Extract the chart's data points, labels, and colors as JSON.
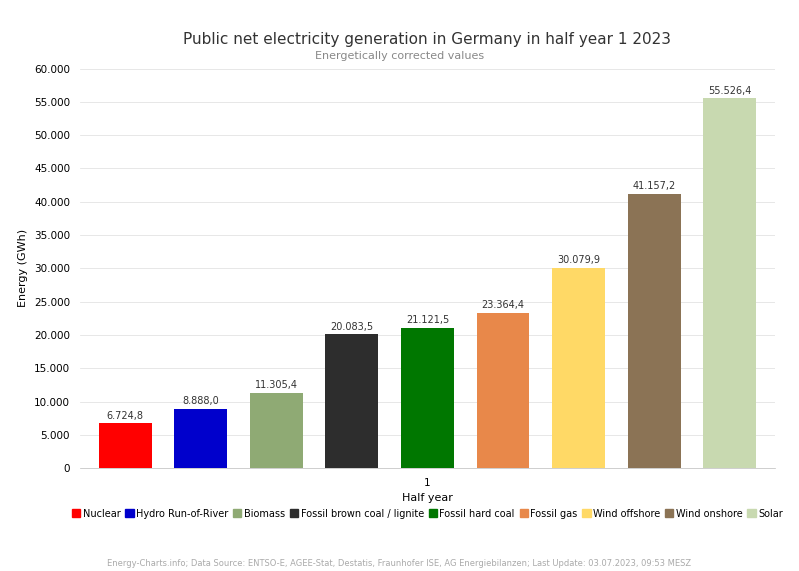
{
  "title": "Public net electricity generation in Germany in half year 1 2023",
  "subtitle": "Energetically corrected values",
  "xlabel": "Half year",
  "ylabel": "Energy (GWh)",
  "footnote": "Energy-Charts.info; Data Source: ENTSO-E, AGEE-Stat, Destatis, Fraunhofer ISE, AG Energiebilanzen; Last Update: 03.07.2023, 09:53 MESZ",
  "xtick_label": "1",
  "ylim": [
    0,
    60000
  ],
  "yticks": [
    0,
    5000,
    10000,
    15000,
    20000,
    25000,
    30000,
    35000,
    40000,
    45000,
    50000,
    55000,
    60000
  ],
  "ytick_labels": [
    "0",
    "5.000",
    "10.000",
    "15.000",
    "20.000",
    "25.000",
    "30.000",
    "35.000",
    "40.000",
    "45.000",
    "50.000",
    "55.000",
    "60.000"
  ],
  "categories": [
    "Nuclear",
    "Hydro Run-of-River",
    "Biomass",
    "Fossil brown coal / lignite",
    "Fossil hard coal",
    "Fossil gas",
    "Wind offshore",
    "Wind onshore",
    "Solar"
  ],
  "values": [
    6724.8,
    8888.0,
    11305.4,
    20083.5,
    21121.5,
    23364.4,
    30079.9,
    41157.2,
    55526.4
  ],
  "value_labels": [
    "6.724,8",
    "8.888,0",
    "11.305,4",
    "20.083,5",
    "21.121,5",
    "23.364,4",
    "30.079,9",
    "41.157,2",
    "55.526,4"
  ],
  "bar_colors": [
    "#ff0000",
    "#0000cc",
    "#8faa74",
    "#2d2d2d",
    "#007700",
    "#e8884a",
    "#ffd966",
    "#8b7355",
    "#c8d9b0"
  ],
  "background_color": "#ffffff",
  "grid_color": "#dddddd",
  "title_fontsize": 11,
  "subtitle_fontsize": 8,
  "axis_label_fontsize": 8,
  "tick_fontsize": 7.5,
  "legend_fontsize": 7,
  "footnote_fontsize": 6,
  "bar_label_fontsize": 7
}
